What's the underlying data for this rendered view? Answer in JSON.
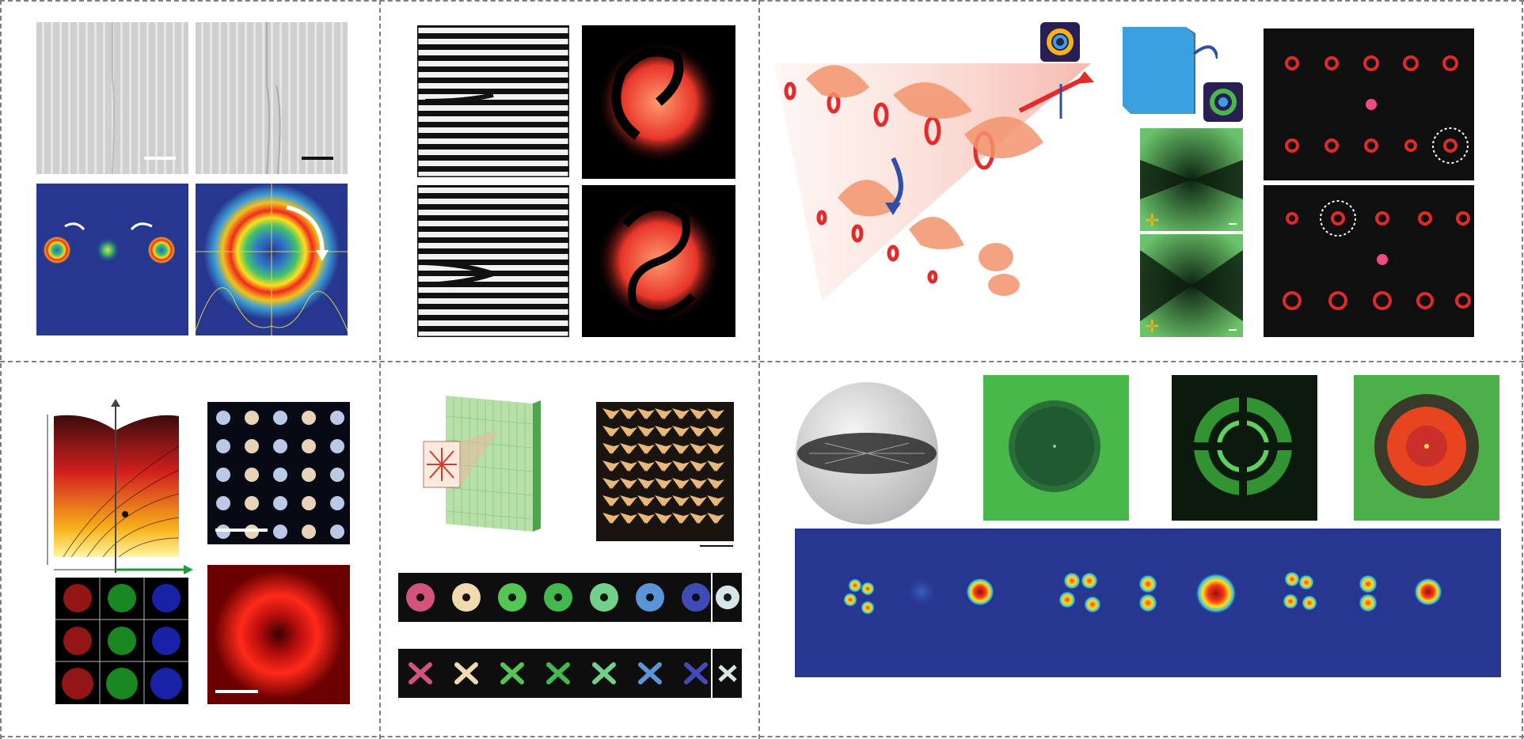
{
  "figure": {
    "panels": [
      {
        "id": "fork-gratings-and-vortex-beams"
      },
      {
        "id": "fork-holograms-and-spiral-beams"
      },
      {
        "id": "metasurface-beam-generation"
      },
      {
        "id": "liquid-crystal-vortex-arrays"
      },
      {
        "id": "metasurface-vortex-rows"
      },
      {
        "id": "droplet-and-mode-profiles"
      }
    ],
    "colors": {
      "divider": "#7f7f7f",
      "heat_background": "#27368f",
      "vortex_red": "#e8352a",
      "green_panel": "#49b84a",
      "arrow_green": "#1f9b3c",
      "cross_yellow": "#f4b21b",
      "rotate_blue": "#2f4fa8"
    }
  }
}
